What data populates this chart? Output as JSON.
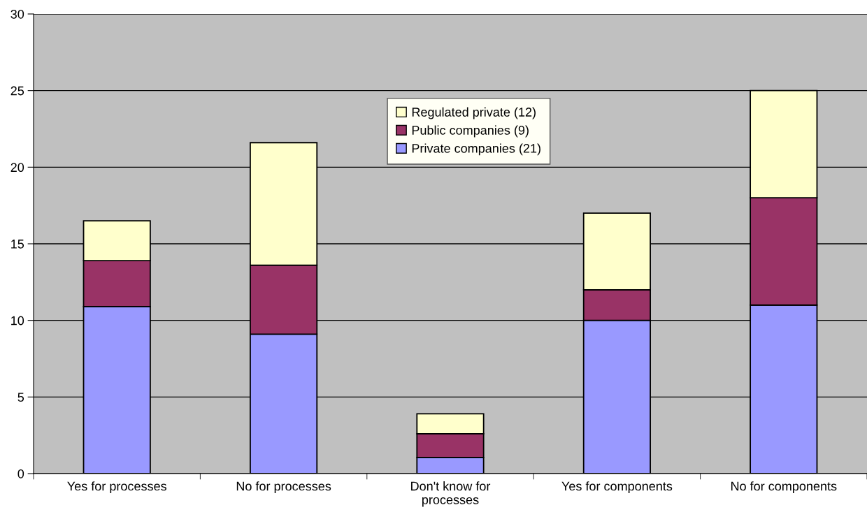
{
  "chart_data": {
    "type": "bar",
    "stacked": true,
    "categories": [
      "Yes for processes",
      "No for processes",
      "Don't know for\nprocesses",
      "Yes for components",
      "No for components"
    ],
    "series": [
      {
        "name": "Private companies (21)",
        "color": "#9999ff",
        "values": [
          10.9,
          9.1,
          1.05,
          10,
          11
        ]
      },
      {
        "name": "Public companies (9)",
        "color": "#993366",
        "values": [
          3.0,
          4.5,
          1.55,
          2,
          7
        ]
      },
      {
        "name": "Regulated private (12)",
        "color": "#ffffcc",
        "values": [
          2.6,
          8.0,
          1.3,
          5,
          7
        ]
      }
    ],
    "ylim": [
      0,
      30
    ],
    "yticks": [
      0,
      5,
      10,
      15,
      20,
      25,
      30
    ],
    "grid": "y",
    "legend": "top"
  }
}
